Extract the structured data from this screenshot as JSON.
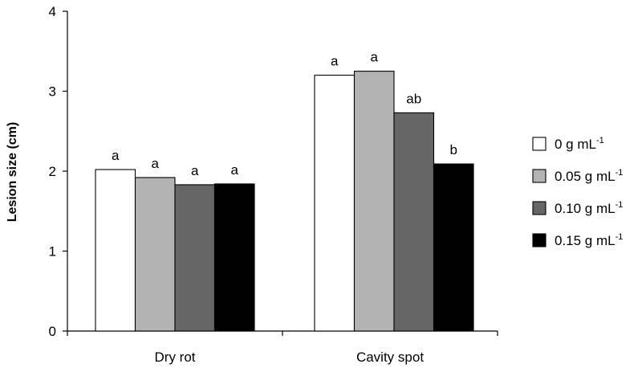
{
  "chart_data": {
    "type": "bar",
    "title": "",
    "xlabel": "",
    "ylabel": "Lesion size (cm)",
    "ylim": [
      0,
      4
    ],
    "yticks": [
      "0",
      "1",
      "2",
      "3",
      "4"
    ],
    "categories": [
      "Dry rot",
      "Cavity spot"
    ],
    "series": [
      {
        "name": "0 g mL",
        "unit_sup": "-1",
        "color": "#ffffff",
        "values": [
          2.02,
          3.2
        ],
        "labels": [
          "a",
          "a"
        ]
      },
      {
        "name": "0.05 g mL",
        "unit_sup": "-1",
        "color": "#b3b3b3",
        "values": [
          1.92,
          3.25
        ],
        "labels": [
          "a",
          "a"
        ]
      },
      {
        "name": "0.10 g mL",
        "unit_sup": "-1",
        "color": "#666666",
        "values": [
          1.83,
          2.73
        ],
        "labels": [
          "a",
          "ab"
        ]
      },
      {
        "name": "0.15 g mL",
        "unit_sup": "-1",
        "color": "#000000",
        "values": [
          1.84,
          2.09
        ],
        "labels": [
          "a",
          "b"
        ]
      }
    ],
    "grid": false,
    "legend_position": "right"
  }
}
